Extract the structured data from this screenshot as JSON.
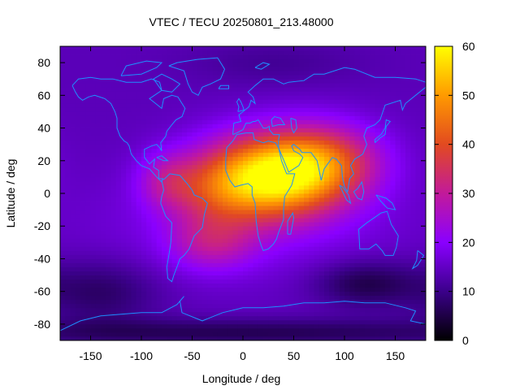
{
  "chart_data": {
    "type": "heatmap",
    "title": "VTEC / TECU 20250801_213.48000",
    "xlabel": "Longitude / deg",
    "ylabel": "Latitude / deg",
    "xlim": [
      -180,
      180
    ],
    "ylim": [
      -90,
      90
    ],
    "x_ticks": [
      -150,
      -100,
      -50,
      0,
      50,
      100,
      150
    ],
    "y_ticks": [
      -80,
      -60,
      -40,
      -20,
      0,
      20,
      40,
      60,
      80
    ],
    "colorbar": {
      "range": [
        0,
        60
      ],
      "ticks": [
        0,
        10,
        20,
        30,
        40,
        50,
        60
      ],
      "palette": [
        "#000000",
        "#3b008a",
        "#8a00ff",
        "#c21a9a",
        "#e24a20",
        "#ff9a00",
        "#ffff00"
      ]
    },
    "grid_resolution_deg": {
      "lon": 5,
      "lat": 2.5
    },
    "peak": {
      "lon": 25,
      "lat": 10,
      "value": 58
    },
    "background_level": 14,
    "coastline_color": "#1e90ff"
  }
}
